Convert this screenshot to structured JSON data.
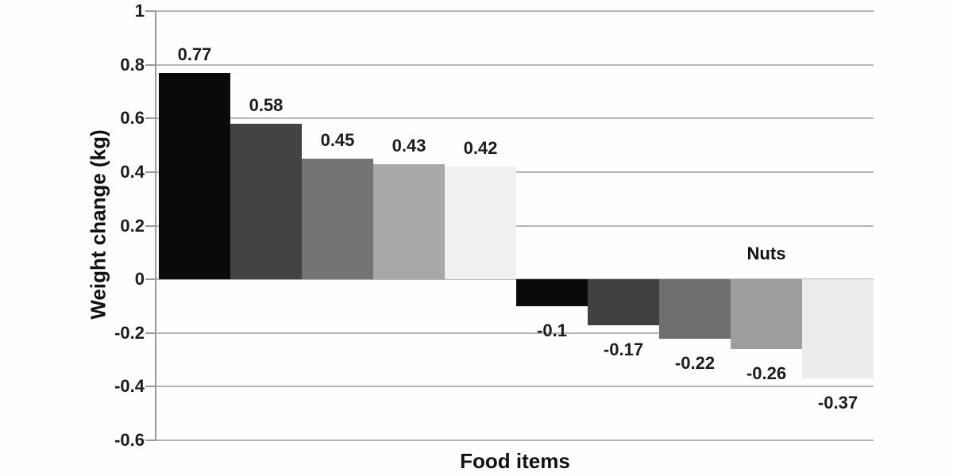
{
  "chart_data": {
    "type": "bar",
    "title": "",
    "xlabel": "Food items",
    "ylabel": "Weight change (kg)",
    "categories": [
      "",
      "",
      "",
      "",
      "",
      "",
      "",
      "",
      "Nuts",
      ""
    ],
    "values": [
      0.77,
      0.58,
      0.45,
      0.43,
      0.42,
      -0.1,
      -0.17,
      -0.22,
      -0.26,
      -0.37
    ],
    "value_labels": [
      "0.77",
      "0.58",
      "0.45",
      "0.43",
      "0.42",
      "-0.1",
      "-0.17",
      "-0.22",
      "-0.26",
      "-0.37"
    ],
    "bar_colors": [
      "#0a0a0a",
      "#434343",
      "#747474",
      "#a8a8a8",
      "#f0f0f0",
      "#0a0a0a",
      "#404040",
      "#6e6e6e",
      "#9e9e9e",
      "#ececec"
    ],
    "annotation": {
      "text": "Nuts",
      "bar_index": 8
    },
    "ylim": [
      -0.6,
      1.0
    ],
    "ytick_step": 0.2,
    "ytick_labels": [
      "1",
      "0.8",
      "0.6",
      "0.4",
      "0.2",
      "0",
      "-0.2",
      "-0.4",
      "-0.6"
    ],
    "ytick_values": [
      1.0,
      0.8,
      0.6,
      0.4,
      0.2,
      0.0,
      -0.2,
      -0.4,
      -0.6
    ],
    "grid": true,
    "legend": "none",
    "gridline_color": "#b5b5b5",
    "axis_color": "#989898",
    "text_color": "#1c1c1c",
    "background_color": "#fefefe"
  }
}
